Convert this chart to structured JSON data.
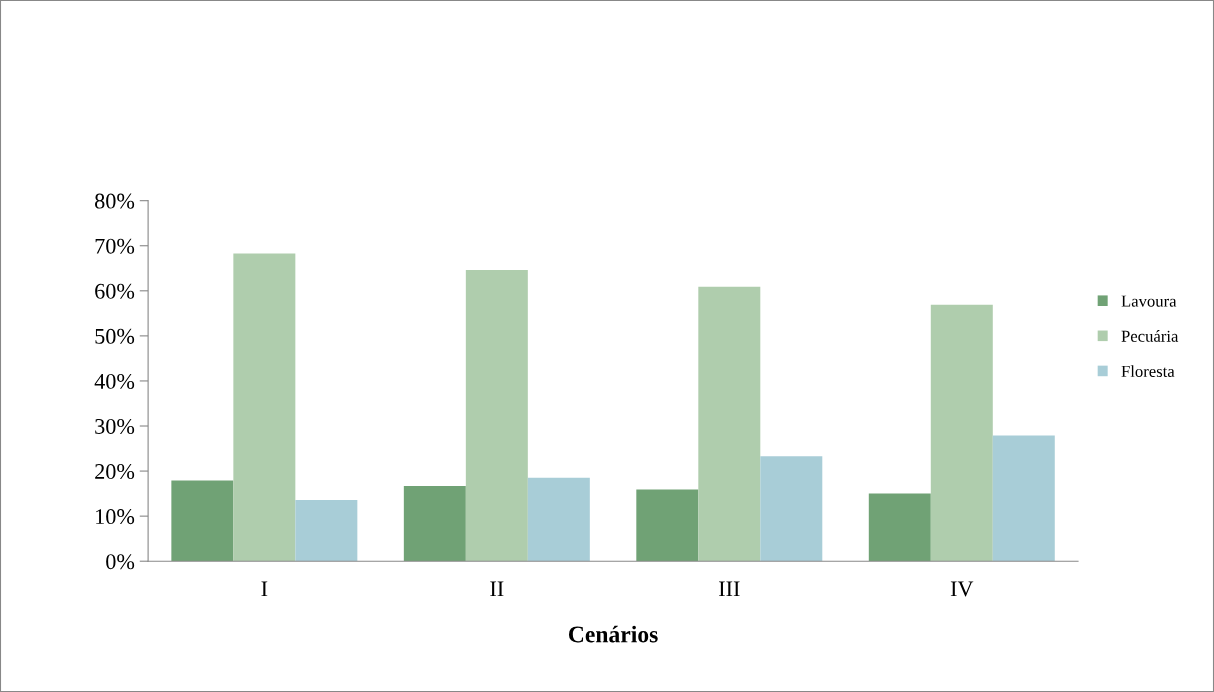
{
  "chart_data": {
    "type": "bar",
    "xlabel": "Cenários",
    "categories": [
      "I",
      "II",
      "III",
      "IV"
    ],
    "series": [
      {
        "name": "Lavoura",
        "color": "#70a275",
        "values": [
          17.9,
          16.7,
          15.9,
          15.0
        ]
      },
      {
        "name": "Pecuária",
        "color": "#afcdad",
        "values": [
          68.3,
          64.6,
          60.9,
          56.9
        ]
      },
      {
        "name": "Floresta",
        "color": "#a8cdd7",
        "values": [
          13.6,
          18.5,
          23.3,
          27.9
        ]
      }
    ],
    "ylim": [
      0,
      80
    ],
    "yticks": [
      {
        "value": 0,
        "label": "0%"
      },
      {
        "value": 10,
        "label": "10%"
      },
      {
        "value": 20,
        "label": "20%"
      },
      {
        "value": 30,
        "label": "30%"
      },
      {
        "value": 40,
        "label": "40%"
      },
      {
        "value": 50,
        "label": "50%"
      },
      {
        "value": 60,
        "label": "60%"
      },
      {
        "value": 70,
        "label": "70%"
      },
      {
        "value": 80,
        "label": "80%"
      }
    ],
    "grid": false,
    "legend": "right"
  }
}
